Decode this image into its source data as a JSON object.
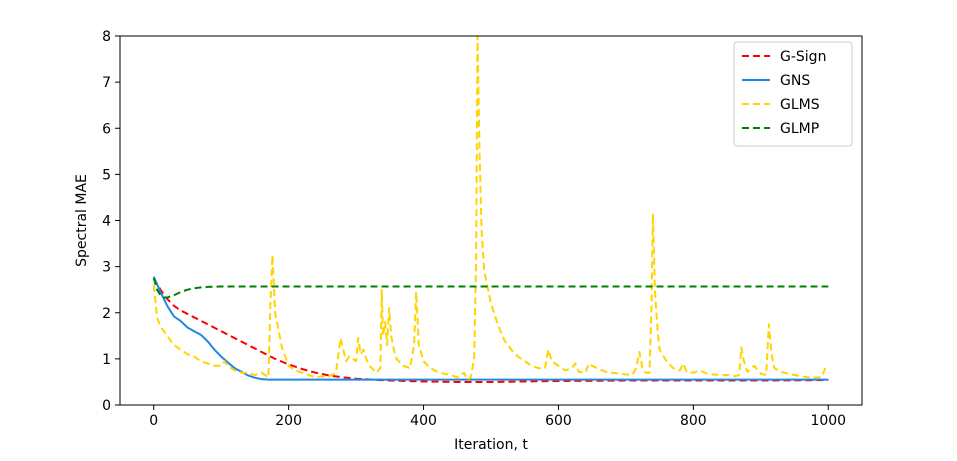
{
  "chart_data": {
    "type": "line",
    "title": "",
    "xlabel": "Iteration, t",
    "ylabel": "Spectral MAE",
    "xlim": [
      -50,
      1050
    ],
    "ylim": [
      0,
      8
    ],
    "x_ticks": [
      0,
      200,
      400,
      600,
      800,
      1000
    ],
    "y_ticks": [
      0,
      1,
      2,
      3,
      4,
      5,
      6,
      7,
      8
    ],
    "grid": false,
    "legend_position": "top-right",
    "series": [
      {
        "name": "G-Sign",
        "color": "#ff0000",
        "style": "dashed",
        "x": [
          0,
          10,
          20,
          30,
          40,
          60,
          80,
          100,
          120,
          140,
          160,
          180,
          200,
          220,
          240,
          260,
          280,
          300,
          350,
          400,
          450,
          500,
          600,
          700,
          800,
          900,
          1000
        ],
        "y": [
          2.75,
          2.5,
          2.3,
          2.15,
          2.05,
          1.9,
          1.75,
          1.6,
          1.45,
          1.3,
          1.15,
          1.0,
          0.88,
          0.78,
          0.7,
          0.64,
          0.6,
          0.57,
          0.53,
          0.51,
          0.5,
          0.5,
          0.52,
          0.53,
          0.53,
          0.53,
          0.54
        ]
      },
      {
        "name": "GNS",
        "color": "#1e88e5",
        "style": "solid",
        "x": [
          0,
          10,
          20,
          30,
          40,
          50,
          60,
          70,
          80,
          90,
          100,
          110,
          120,
          130,
          140,
          150,
          160,
          170,
          180,
          200,
          300,
          400,
          600,
          800,
          1000
        ],
        "y": [
          2.78,
          2.45,
          2.15,
          1.92,
          1.82,
          1.68,
          1.6,
          1.52,
          1.38,
          1.2,
          1.05,
          0.92,
          0.8,
          0.72,
          0.64,
          0.59,
          0.56,
          0.55,
          0.55,
          0.55,
          0.55,
          0.55,
          0.55,
          0.55,
          0.55
        ]
      },
      {
        "name": "GLMS",
        "color": "#ffd400",
        "style": "dashed",
        "x": [
          0,
          5,
          10,
          20,
          30,
          40,
          50,
          60,
          70,
          80,
          90,
          100,
          105,
          110,
          120,
          130,
          140,
          150,
          160,
          170,
          173,
          176,
          180,
          190,
          200,
          210,
          220,
          230,
          240,
          250,
          260,
          270,
          273,
          277,
          281,
          285,
          290,
          300,
          303,
          307,
          311,
          315,
          320,
          330,
          336,
          338,
          340,
          343,
          346,
          349,
          352,
          356,
          360,
          370,
          380,
          386,
          389,
          393,
          400,
          410,
          420,
          430,
          440,
          450,
          460,
          465,
          470,
          475,
          478,
          480,
          483,
          486,
          490,
          500,
          510,
          520,
          530,
          540,
          550,
          560,
          570,
          580,
          585,
          590,
          600,
          610,
          620,
          625,
          630,
          640,
          645,
          650,
          660,
          670,
          680,
          690,
          700,
          710,
          715,
          720,
          725,
          730,
          735,
          738,
          740,
          743,
          747,
          750,
          760,
          770,
          780,
          785,
          790,
          800,
          810,
          820,
          830,
          840,
          850,
          860,
          868,
          871,
          875,
          880,
          890,
          900,
          908,
          912,
          916,
          920,
          930,
          940,
          950,
          960,
          970,
          980,
          990,
          995,
          1000
        ],
        "y": [
          2.6,
          1.9,
          1.7,
          1.5,
          1.3,
          1.2,
          1.1,
          1.05,
          0.95,
          0.9,
          0.85,
          0.85,
          0.95,
          0.85,
          0.75,
          0.7,
          0.7,
          0.65,
          0.7,
          0.6,
          2.2,
          3.25,
          2.0,
          1.25,
          0.85,
          0.75,
          0.7,
          0.65,
          0.6,
          0.62,
          0.62,
          0.7,
          1.0,
          1.45,
          1.2,
          0.95,
          1.05,
          0.95,
          1.45,
          1.1,
          1.2,
          1.0,
          0.85,
          0.7,
          0.8,
          2.5,
          1.5,
          1.8,
          1.3,
          2.1,
          1.5,
          1.2,
          1.0,
          0.85,
          0.8,
          1.3,
          2.45,
          1.3,
          0.95,
          0.8,
          0.72,
          0.68,
          0.65,
          0.6,
          0.7,
          0.55,
          0.6,
          1.0,
          3.2,
          8.0,
          5.5,
          3.8,
          2.9,
          2.2,
          1.75,
          1.4,
          1.2,
          1.05,
          0.95,
          0.85,
          0.8,
          0.8,
          1.2,
          0.95,
          0.85,
          0.75,
          0.8,
          0.9,
          0.72,
          0.7,
          0.9,
          0.85,
          0.78,
          0.72,
          0.7,
          0.68,
          0.66,
          0.66,
          0.8,
          1.15,
          0.75,
          0.7,
          0.7,
          2.2,
          4.15,
          2.5,
          1.6,
          1.2,
          0.95,
          0.8,
          0.75,
          0.9,
          0.72,
          0.7,
          0.75,
          0.68,
          0.66,
          0.65,
          0.65,
          0.62,
          0.65,
          1.25,
          0.95,
          0.72,
          0.85,
          0.68,
          0.65,
          1.75,
          1.1,
          0.8,
          0.72,
          0.68,
          0.65,
          0.62,
          0.6,
          0.6,
          0.6,
          0.78,
          0.7
        ]
      },
      {
        "name": "GLMP",
        "color": "#008000",
        "style": "dashed",
        "x": [
          0,
          5,
          10,
          15,
          20,
          30,
          40,
          50,
          60,
          70,
          80,
          100,
          120,
          150,
          200,
          300,
          500,
          700,
          1000
        ],
        "y": [
          2.75,
          2.5,
          2.38,
          2.33,
          2.33,
          2.38,
          2.45,
          2.5,
          2.53,
          2.55,
          2.56,
          2.57,
          2.57,
          2.57,
          2.57,
          2.57,
          2.57,
          2.57,
          2.57
        ]
      }
    ]
  }
}
